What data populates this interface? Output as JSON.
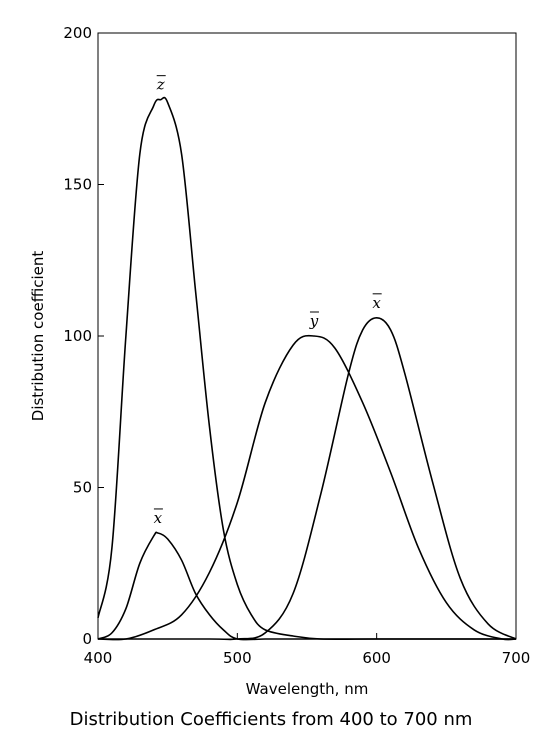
{
  "caption": "Distribution Coefficients from 400 to 700 nm",
  "chart_data": {
    "type": "line",
    "title": "",
    "xlabel": "Wavelength, nm",
    "ylabel": "Distribution coefficient",
    "xlim": [
      400,
      700
    ],
    "ylim": [
      0,
      200
    ],
    "x_ticks": [
      "400",
      "500",
      "600",
      "700"
    ],
    "y_ticks": [
      "0",
      "50",
      "100",
      "150",
      "200"
    ],
    "grid": false,
    "legend": "none",
    "line_color": "#000000",
    "series": [
      {
        "name": "z",
        "x": [
          400,
          410,
          420,
          430,
          440,
          445,
          450,
          460,
          470,
          480,
          490,
          500,
          510,
          520,
          540,
          560,
          600,
          700
        ],
        "y": [
          7,
          30,
          100,
          160,
          176,
          178,
          177,
          160,
          115,
          70,
          36,
          18,
          8,
          3,
          1,
          0,
          0,
          0
        ]
      },
      {
        "name": "x",
        "x": [
          400,
          410,
          420,
          430,
          440,
          443,
          450,
          460,
          470,
          480,
          490,
          500,
          520,
          540,
          700
        ],
        "y": [
          0,
          2,
          10,
          25,
          34,
          35,
          33,
          26,
          15,
          8,
          3,
          0,
          0,
          0,
          0
        ]
      },
      {
        "name": "y",
        "x": [
          400,
          420,
          440,
          460,
          480,
          500,
          520,
          540,
          555,
          570,
          590,
          610,
          630,
          650,
          670,
          690,
          700
        ],
        "y": [
          0,
          0,
          3,
          8,
          22,
          45,
          78,
          97,
          100,
          96,
          78,
          55,
          30,
          12,
          3,
          0,
          0
        ]
      },
      {
        "name": "x",
        "x": [
          400,
          480,
          500,
          520,
          540,
          560,
          580,
          590,
          600,
          610,
          620,
          640,
          660,
          680,
          700
        ],
        "y": [
          0,
          0,
          0,
          2,
          15,
          48,
          88,
          102,
          106,
          102,
          88,
          52,
          20,
          5,
          0
        ]
      }
    ]
  }
}
